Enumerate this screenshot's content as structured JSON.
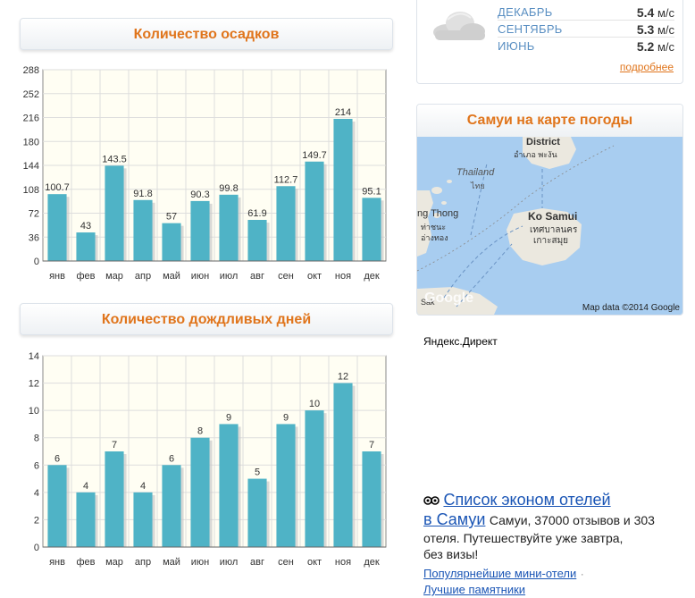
{
  "top_cutoff_text": "",
  "precip": {
    "header": "Количество осадков"
  },
  "rain_days": {
    "header": "Количество дождливых дней"
  },
  "chart_data": [
    {
      "type": "bar",
      "categories": [
        "янв",
        "фев",
        "мар",
        "апр",
        "май",
        "июн",
        "июл",
        "авг",
        "сен",
        "окт",
        "ноя",
        "дек"
      ],
      "values": [
        100.7,
        43,
        143.5,
        91.8,
        57,
        90.3,
        99.8,
        61.9,
        112.7,
        149.7,
        214,
        95.1
      ],
      "value_labels": [
        "100.7",
        "43",
        "143.5",
        "91.8",
        "57",
        "90.3",
        "99.8",
        "61.9",
        "112.7",
        "149.7",
        "214",
        "95.1"
      ],
      "title": "Количество осадков",
      "ylim": [
        0,
        288
      ],
      "yticks": [
        "0",
        "36",
        "72",
        "108",
        "144",
        "180",
        "216",
        "252",
        "288"
      ],
      "grid": true,
      "color": "#4fb3c6"
    },
    {
      "type": "bar",
      "categories": [
        "янв",
        "фев",
        "мар",
        "апр",
        "май",
        "июн",
        "июл",
        "авг",
        "сен",
        "окт",
        "ноя",
        "дек"
      ],
      "values": [
        6,
        4,
        7,
        4,
        6,
        8,
        9,
        5,
        9,
        10,
        12,
        7
      ],
      "value_labels": [
        "6",
        "4",
        "7",
        "4",
        "6",
        "8",
        "9",
        "5",
        "9",
        "10",
        "12",
        "7"
      ],
      "title": "Количество дождливых дней",
      "ylim": [
        0,
        14
      ],
      "yticks": [
        "0",
        "2",
        "4",
        "6",
        "8",
        "10",
        "12",
        "14"
      ],
      "grid": true,
      "color": "#4fb3c6"
    }
  ],
  "wind": {
    "rows": [
      {
        "month": "ДЕКАБРЬ",
        "value": "5.4",
        "unit": "м/с"
      },
      {
        "month": "СЕНТЯБРЬ",
        "value": "5.3",
        "unit": "м/с"
      },
      {
        "month": "ИЮНЬ",
        "value": "5.2",
        "unit": "м/с"
      }
    ],
    "more_link": "подробнее",
    "icon": "cloud-icon"
  },
  "map": {
    "header": "Самуи на карте погоды",
    "labels": {
      "district": "District",
      "district_th": "อำเภอ พะงัน",
      "thailand": "Thailand",
      "thailand_th": "ไทย",
      "ko_samui": "Ko Samui",
      "ko_samui_th1": "เทศบาลนคร",
      "ko_samui_th2": "เกาะสมุย",
      "tha_thong": "ng Thong",
      "tha_thong_th1": "ท่าชนะ",
      "tha_thong_th2": "อ่างทอง",
      "sak": "Sak",
      "google": "Google",
      "map_data": "Map data ©2014 Google"
    },
    "colors": {
      "water": "#a8cdf0",
      "land": "#ebe8df"
    }
  },
  "direct": {
    "title": "Яндекс.Директ",
    "ad_icon": "tripadvisor-icon",
    "ad_title_1": "Список эконом отелей",
    "ad_title_2": "в Самуи",
    "ad_text_1": "Самуи, 37000 отзывов и 303",
    "ad_text_2": "отеля. Путешествуйте уже завтра,",
    "ad_text_3": "без визы!",
    "link_1": "Популярнейшие мини-отели",
    "link_sep": "·",
    "link_2": "Лучшие памятники"
  }
}
